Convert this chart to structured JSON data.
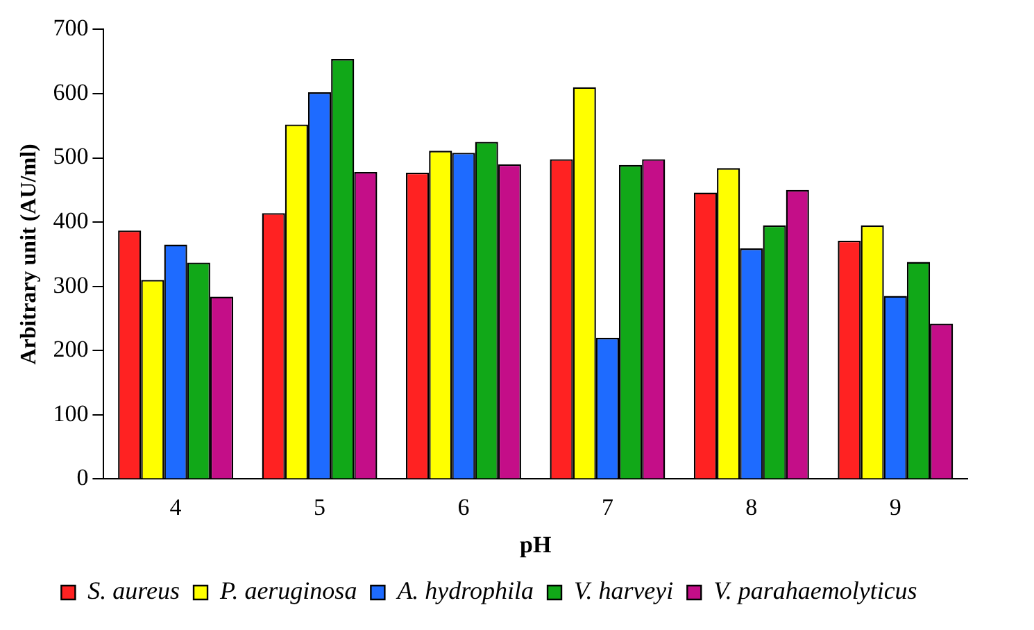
{
  "chart_data": {
    "type": "bar",
    "xlabel": "pH",
    "ylabel": "Arbitrary unit (AU/ml)",
    "categories": [
      "4",
      "5",
      "6",
      "7",
      "8",
      "9"
    ],
    "series": [
      {
        "name": "S. aureus",
        "color": "#ff2222",
        "values": [
          387,
          414,
          477,
          498,
          446,
          371
        ]
      },
      {
        "name": "P. aeruginosa",
        "color": "#ffff00",
        "values": [
          310,
          552,
          511,
          610,
          484,
          395
        ]
      },
      {
        "name": "A. hydrophila",
        "color": "#1e6bff",
        "values": [
          365,
          602,
          508,
          220,
          359,
          285
        ]
      },
      {
        "name": "V. harveyi",
        "color": "#11a818",
        "values": [
          337,
          654,
          525,
          489,
          395,
          338
        ]
      },
      {
        "name": "V. parahaemolyticus",
        "color": "#c40e88",
        "values": [
          284,
          478,
          490,
          498,
          450,
          242
        ]
      }
    ],
    "ylim": [
      0,
      700
    ],
    "yticks": [
      0,
      100,
      200,
      300,
      400,
      500,
      600,
      700
    ],
    "grid": false,
    "legend": "bottom"
  }
}
